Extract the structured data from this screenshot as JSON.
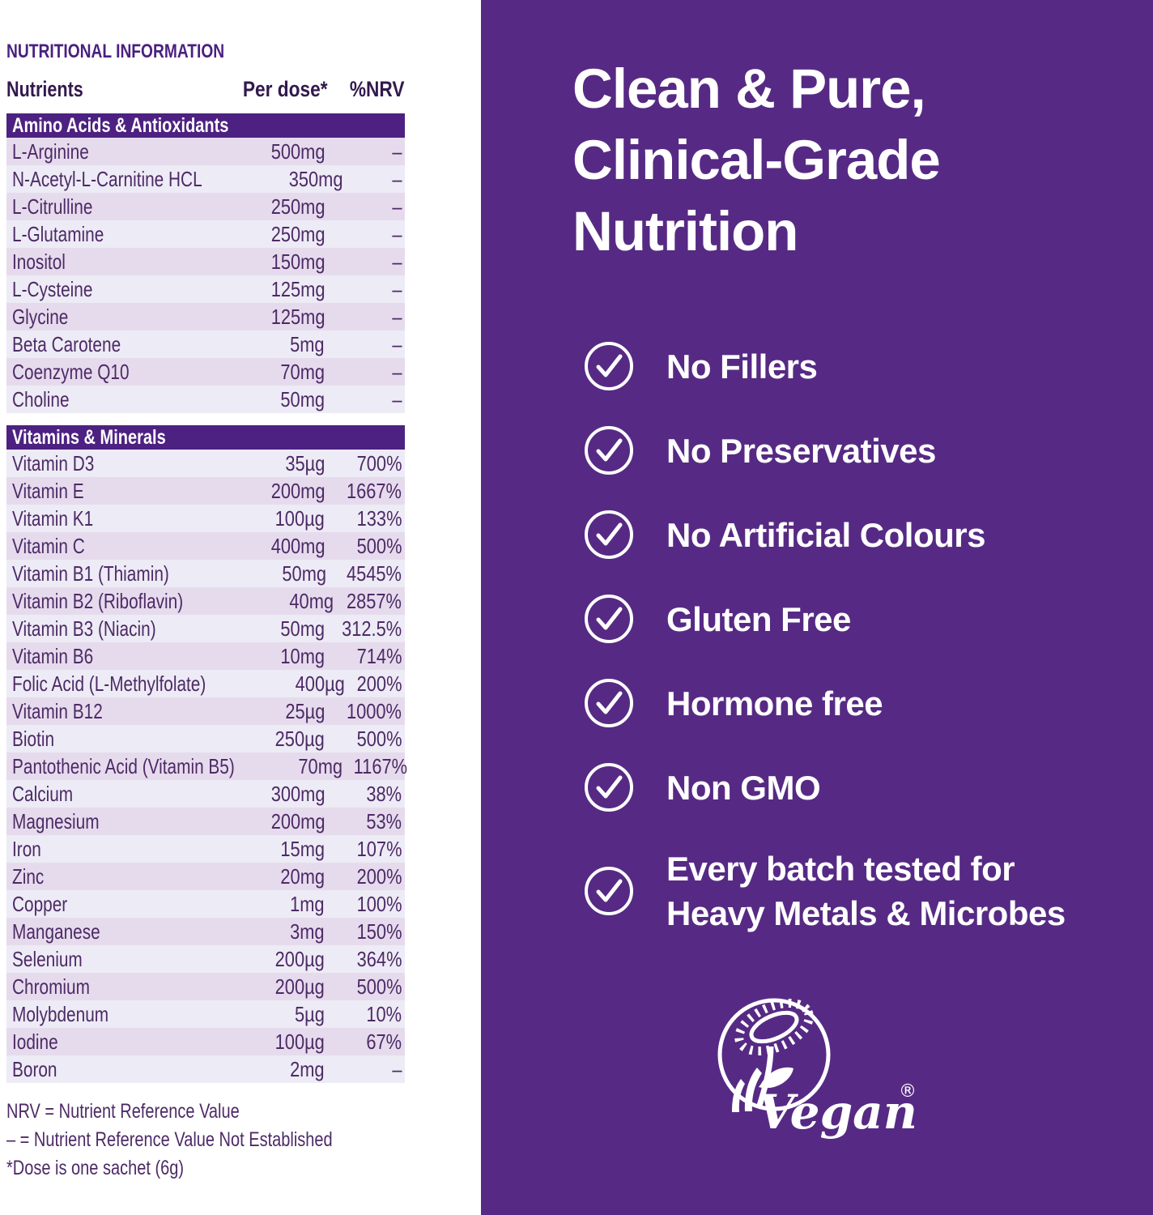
{
  "table": {
    "title": "NUTRITIONAL INFORMATION",
    "columns": [
      "Nutrients",
      "Per dose*",
      "%NRV"
    ],
    "sections": [
      {
        "header": "Amino Acids & Antioxidants",
        "rows": [
          [
            "L-Arginine",
            "500mg",
            "–"
          ],
          [
            "N-Acetyl-L-Carnitine HCL",
            "350mg",
            "–"
          ],
          [
            "L-Citrulline",
            "250mg",
            "–"
          ],
          [
            "L-Glutamine",
            "250mg",
            "–"
          ],
          [
            "Inositol",
            "150mg",
            "–"
          ],
          [
            "L-Cysteine",
            "125mg",
            "–"
          ],
          [
            "Glycine",
            "125mg",
            "–"
          ],
          [
            "Beta Carotene",
            "5mg",
            "–"
          ],
          [
            "Coenzyme Q10",
            "70mg",
            "–"
          ],
          [
            "Choline",
            "50mg",
            "–"
          ]
        ]
      },
      {
        "header": "Vitamins & Minerals",
        "rows": [
          [
            "Vitamin D3",
            "35µg",
            "700%"
          ],
          [
            "Vitamin E",
            "200mg",
            "1667%"
          ],
          [
            "Vitamin K1",
            "100µg",
            "133%"
          ],
          [
            "Vitamin C",
            "400mg",
            "500%"
          ],
          [
            "Vitamin B1 (Thiamin)",
            "50mg",
            "4545%"
          ],
          [
            "Vitamin B2 (Riboflavin)",
            "40mg",
            "2857%"
          ],
          [
            "Vitamin B3 (Niacin)",
            "50mg",
            "312.5%"
          ],
          [
            "Vitamin B6",
            "10mg",
            "714%"
          ],
          [
            "Folic Acid (L-Methylfolate)",
            "400µg",
            "200%"
          ],
          [
            "Vitamin B12",
            "25µg",
            "1000%"
          ],
          [
            "Biotin",
            "250µg",
            "500%"
          ],
          [
            "Pantothenic Acid (Vitamin B5)",
            "70mg",
            "1167%"
          ],
          [
            "Calcium",
            "300mg",
            "38%"
          ],
          [
            "Magnesium",
            "200mg",
            "53%"
          ],
          [
            "Iron",
            "15mg",
            "107%"
          ],
          [
            "Zinc",
            "20mg",
            "200%"
          ],
          [
            "Copper",
            "1mg",
            "100%"
          ],
          [
            "Manganese",
            "3mg",
            "150%"
          ],
          [
            "Selenium",
            "200µg",
            "364%"
          ],
          [
            "Chromium",
            "200µg",
            "500%"
          ],
          [
            "Molybdenum",
            "5µg",
            "10%"
          ],
          [
            "Iodine",
            "100µg",
            "67%"
          ],
          [
            "Boron",
            "2mg",
            "–"
          ]
        ]
      }
    ],
    "footnotes": [
      "NRV = Nutrient Reference Value",
      "– = Nutrient Reference Value Not Established",
      "*Dose is one sachet (6g)"
    ]
  },
  "panel": {
    "heading_lines": [
      "Clean & Pure,",
      "Clinical-Grade",
      "Nutrition"
    ],
    "items": [
      {
        "label": "No Fillers"
      },
      {
        "label": "No Preservatives"
      },
      {
        "label": "No Artificial Colours"
      },
      {
        "label": "Gluten Free"
      },
      {
        "label": "Hormone free"
      },
      {
        "label": "Non GMO"
      },
      {
        "label": "Every batch tested for",
        "label2": "Heavy Metals & Microbes"
      }
    ],
    "vegan_label": "Vegan",
    "vegan_reg": "®"
  },
  "colors": {
    "panel_purple": "#562a84",
    "section_bar": "#4d2181",
    "table_title": "#4b2080",
    "column_header": "#32194e",
    "row_text": "#4d2a66",
    "stripe_dark": "#e6dbed",
    "stripe_light": "#edebf5",
    "white": "#ffffff"
  }
}
